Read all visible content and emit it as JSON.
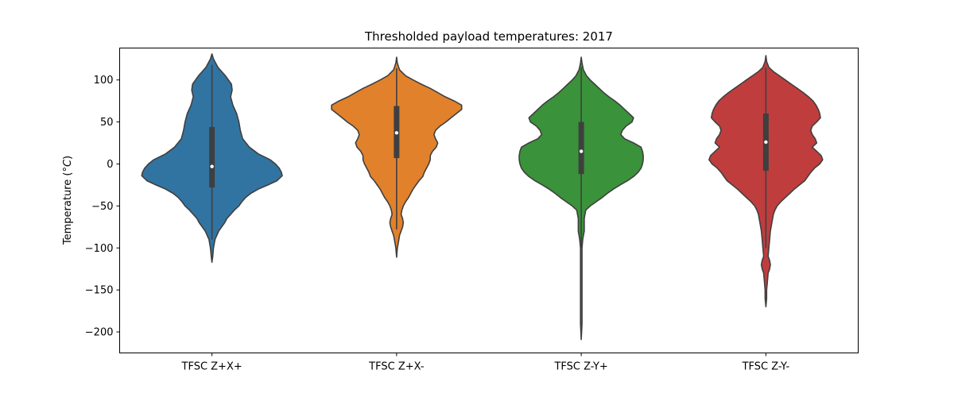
{
  "chart_data": {
    "type": "violin",
    "title": "Thresholded payload temperatures: 2017",
    "ylabel_main": "Temperature (",
    "ylabel_unit": "°C",
    "ylabel_close": ")",
    "xlabel": "",
    "ylim": [
      -225,
      138
    ],
    "yticks": [
      100,
      50,
      0,
      -50,
      -100,
      -150,
      -200
    ],
    "ytick_labels": [
      "100",
      "50",
      "0",
      "−50",
      "−100",
      "−150",
      "−200"
    ],
    "grid": false,
    "categories": [
      "TFSC Z+X+",
      "TFSC Z+X-",
      "TFSC Z-Y+",
      "TFSC Z-Y-"
    ],
    "series": [
      {
        "color": "#3274a1",
        "min": -117,
        "max": 131,
        "q1": -28,
        "median": -3,
        "q3": 44,
        "whisker_low": -90,
        "whisker_high": 118,
        "profile": [
          [
            131,
            0
          ],
          [
            125,
            2
          ],
          [
            115,
            8
          ],
          [
            105,
            18
          ],
          [
            95,
            26
          ],
          [
            88,
            27
          ],
          [
            80,
            25
          ],
          [
            70,
            28
          ],
          [
            60,
            33
          ],
          [
            50,
            36
          ],
          [
            40,
            38
          ],
          [
            30,
            41
          ],
          [
            20,
            50
          ],
          [
            12,
            62
          ],
          [
            5,
            78
          ],
          [
            0,
            85
          ],
          [
            -5,
            90
          ],
          [
            -10,
            93
          ],
          [
            -14,
            94
          ],
          [
            -20,
            87
          ],
          [
            -25,
            75
          ],
          [
            -30,
            62
          ],
          [
            -35,
            52
          ],
          [
            -40,
            45
          ],
          [
            -45,
            40
          ],
          [
            -50,
            36
          ],
          [
            -55,
            30
          ],
          [
            -60,
            25
          ],
          [
            -65,
            20
          ],
          [
            -70,
            17
          ],
          [
            -75,
            13
          ],
          [
            -80,
            9
          ],
          [
            -90,
            4
          ],
          [
            -100,
            2
          ],
          [
            -110,
            1
          ],
          [
            -117,
            0
          ]
        ]
      },
      {
        "color": "#e1812c",
        "min": -111,
        "max": 127,
        "q1": 7,
        "median": 37,
        "q3": 69,
        "whisker_low": -78,
        "whisker_high": 114,
        "profile": [
          [
            127,
            0
          ],
          [
            120,
            1
          ],
          [
            112,
            4
          ],
          [
            105,
            12
          ],
          [
            100,
            22
          ],
          [
            95,
            33
          ],
          [
            90,
            45
          ],
          [
            85,
            55
          ],
          [
            80,
            65
          ],
          [
            75,
            77
          ],
          [
            70,
            87
          ],
          [
            65,
            87
          ],
          [
            60,
            80
          ],
          [
            55,
            73
          ],
          [
            50,
            66
          ],
          [
            45,
            58
          ],
          [
            40,
            52
          ],
          [
            35,
            50
          ],
          [
            30,
            52
          ],
          [
            25,
            55
          ],
          [
            20,
            53
          ],
          [
            15,
            48
          ],
          [
            10,
            45
          ],
          [
            5,
            45
          ],
          [
            0,
            43
          ],
          [
            -5,
            40
          ],
          [
            -10,
            37
          ],
          [
            -15,
            35
          ],
          [
            -20,
            30
          ],
          [
            -25,
            26
          ],
          [
            -30,
            22
          ],
          [
            -35,
            19
          ],
          [
            -40,
            16
          ],
          [
            -45,
            12
          ],
          [
            -50,
            9
          ],
          [
            -55,
            7
          ],
          [
            -60,
            6
          ],
          [
            -65,
            8
          ],
          [
            -70,
            9
          ],
          [
            -75,
            8
          ],
          [
            -80,
            6
          ],
          [
            -85,
            4
          ],
          [
            -90,
            3
          ],
          [
            -95,
            2
          ],
          [
            -100,
            1
          ],
          [
            -111,
            0
          ]
        ]
      },
      {
        "color": "#3a923a",
        "min": -209,
        "max": 127,
        "q1": -12,
        "median": 15,
        "q3": 50,
        "whisker_low": -100,
        "whisker_high": 115,
        "profile": [
          [
            127,
            0
          ],
          [
            120,
            1
          ],
          [
            112,
            3
          ],
          [
            105,
            7
          ],
          [
            100,
            12
          ],
          [
            95,
            18
          ],
          [
            90,
            24
          ],
          [
            85,
            30
          ],
          [
            80,
            37
          ],
          [
            75,
            45
          ],
          [
            70,
            52
          ],
          [
            65,
            58
          ],
          [
            60,
            64
          ],
          [
            55,
            70
          ],
          [
            50,
            68
          ],
          [
            45,
            60
          ],
          [
            40,
            55
          ],
          [
            35,
            53
          ],
          [
            30,
            58
          ],
          [
            25,
            70
          ],
          [
            20,
            80
          ],
          [
            15,
            82
          ],
          [
            10,
            83
          ],
          [
            5,
            83
          ],
          [
            0,
            82
          ],
          [
            -5,
            80
          ],
          [
            -10,
            76
          ],
          [
            -15,
            70
          ],
          [
            -20,
            62
          ],
          [
            -25,
            52
          ],
          [
            -30,
            43
          ],
          [
            -35,
            35
          ],
          [
            -40,
            28
          ],
          [
            -45,
            20
          ],
          [
            -50,
            12
          ],
          [
            -55,
            6
          ],
          [
            -60,
            5
          ],
          [
            -65,
            4
          ],
          [
            -70,
            4
          ],
          [
            -75,
            4
          ],
          [
            -80,
            4
          ],
          [
            -85,
            3
          ],
          [
            -90,
            2
          ],
          [
            -100,
            1
          ],
          [
            -110,
            1
          ],
          [
            -130,
            1
          ],
          [
            -160,
            1
          ],
          [
            -190,
            1
          ],
          [
            -209,
            0
          ]
        ]
      },
      {
        "color": "#c03d3e",
        "min": -170,
        "max": 129,
        "q1": -8,
        "median": 26,
        "q3": 60,
        "whisker_low": -100,
        "whisker_high": 115,
        "profile": [
          [
            129,
            0
          ],
          [
            122,
            1
          ],
          [
            115,
            4
          ],
          [
            110,
            10
          ],
          [
            105,
            18
          ],
          [
            100,
            26
          ],
          [
            95,
            34
          ],
          [
            90,
            42
          ],
          [
            85,
            50
          ],
          [
            80,
            57
          ],
          [
            75,
            63
          ],
          [
            70,
            67
          ],
          [
            65,
            70
          ],
          [
            60,
            72
          ],
          [
            55,
            73
          ],
          [
            50,
            68
          ],
          [
            45,
            62
          ],
          [
            40,
            60
          ],
          [
            35,
            62
          ],
          [
            30,
            66
          ],
          [
            25,
            68
          ],
          [
            20,
            62
          ],
          [
            15,
            68
          ],
          [
            10,
            74
          ],
          [
            5,
            76
          ],
          [
            0,
            72
          ],
          [
            -5,
            65
          ],
          [
            -10,
            60
          ],
          [
            -15,
            56
          ],
          [
            -20,
            52
          ],
          [
            -25,
            45
          ],
          [
            -30,
            38
          ],
          [
            -35,
            32
          ],
          [
            -40,
            26
          ],
          [
            -45,
            20
          ],
          [
            -50,
            15
          ],
          [
            -55,
            12
          ],
          [
            -60,
            10
          ],
          [
            -70,
            8
          ],
          [
            -80,
            6
          ],
          [
            -90,
            5
          ],
          [
            -100,
            4
          ],
          [
            -110,
            3
          ],
          [
            -115,
            5
          ],
          [
            -120,
            6
          ],
          [
            -125,
            5
          ],
          [
            -130,
            3
          ],
          [
            -140,
            2
          ],
          [
            -150,
            1
          ],
          [
            -160,
            1
          ],
          [
            -170,
            0
          ]
        ]
      }
    ]
  }
}
